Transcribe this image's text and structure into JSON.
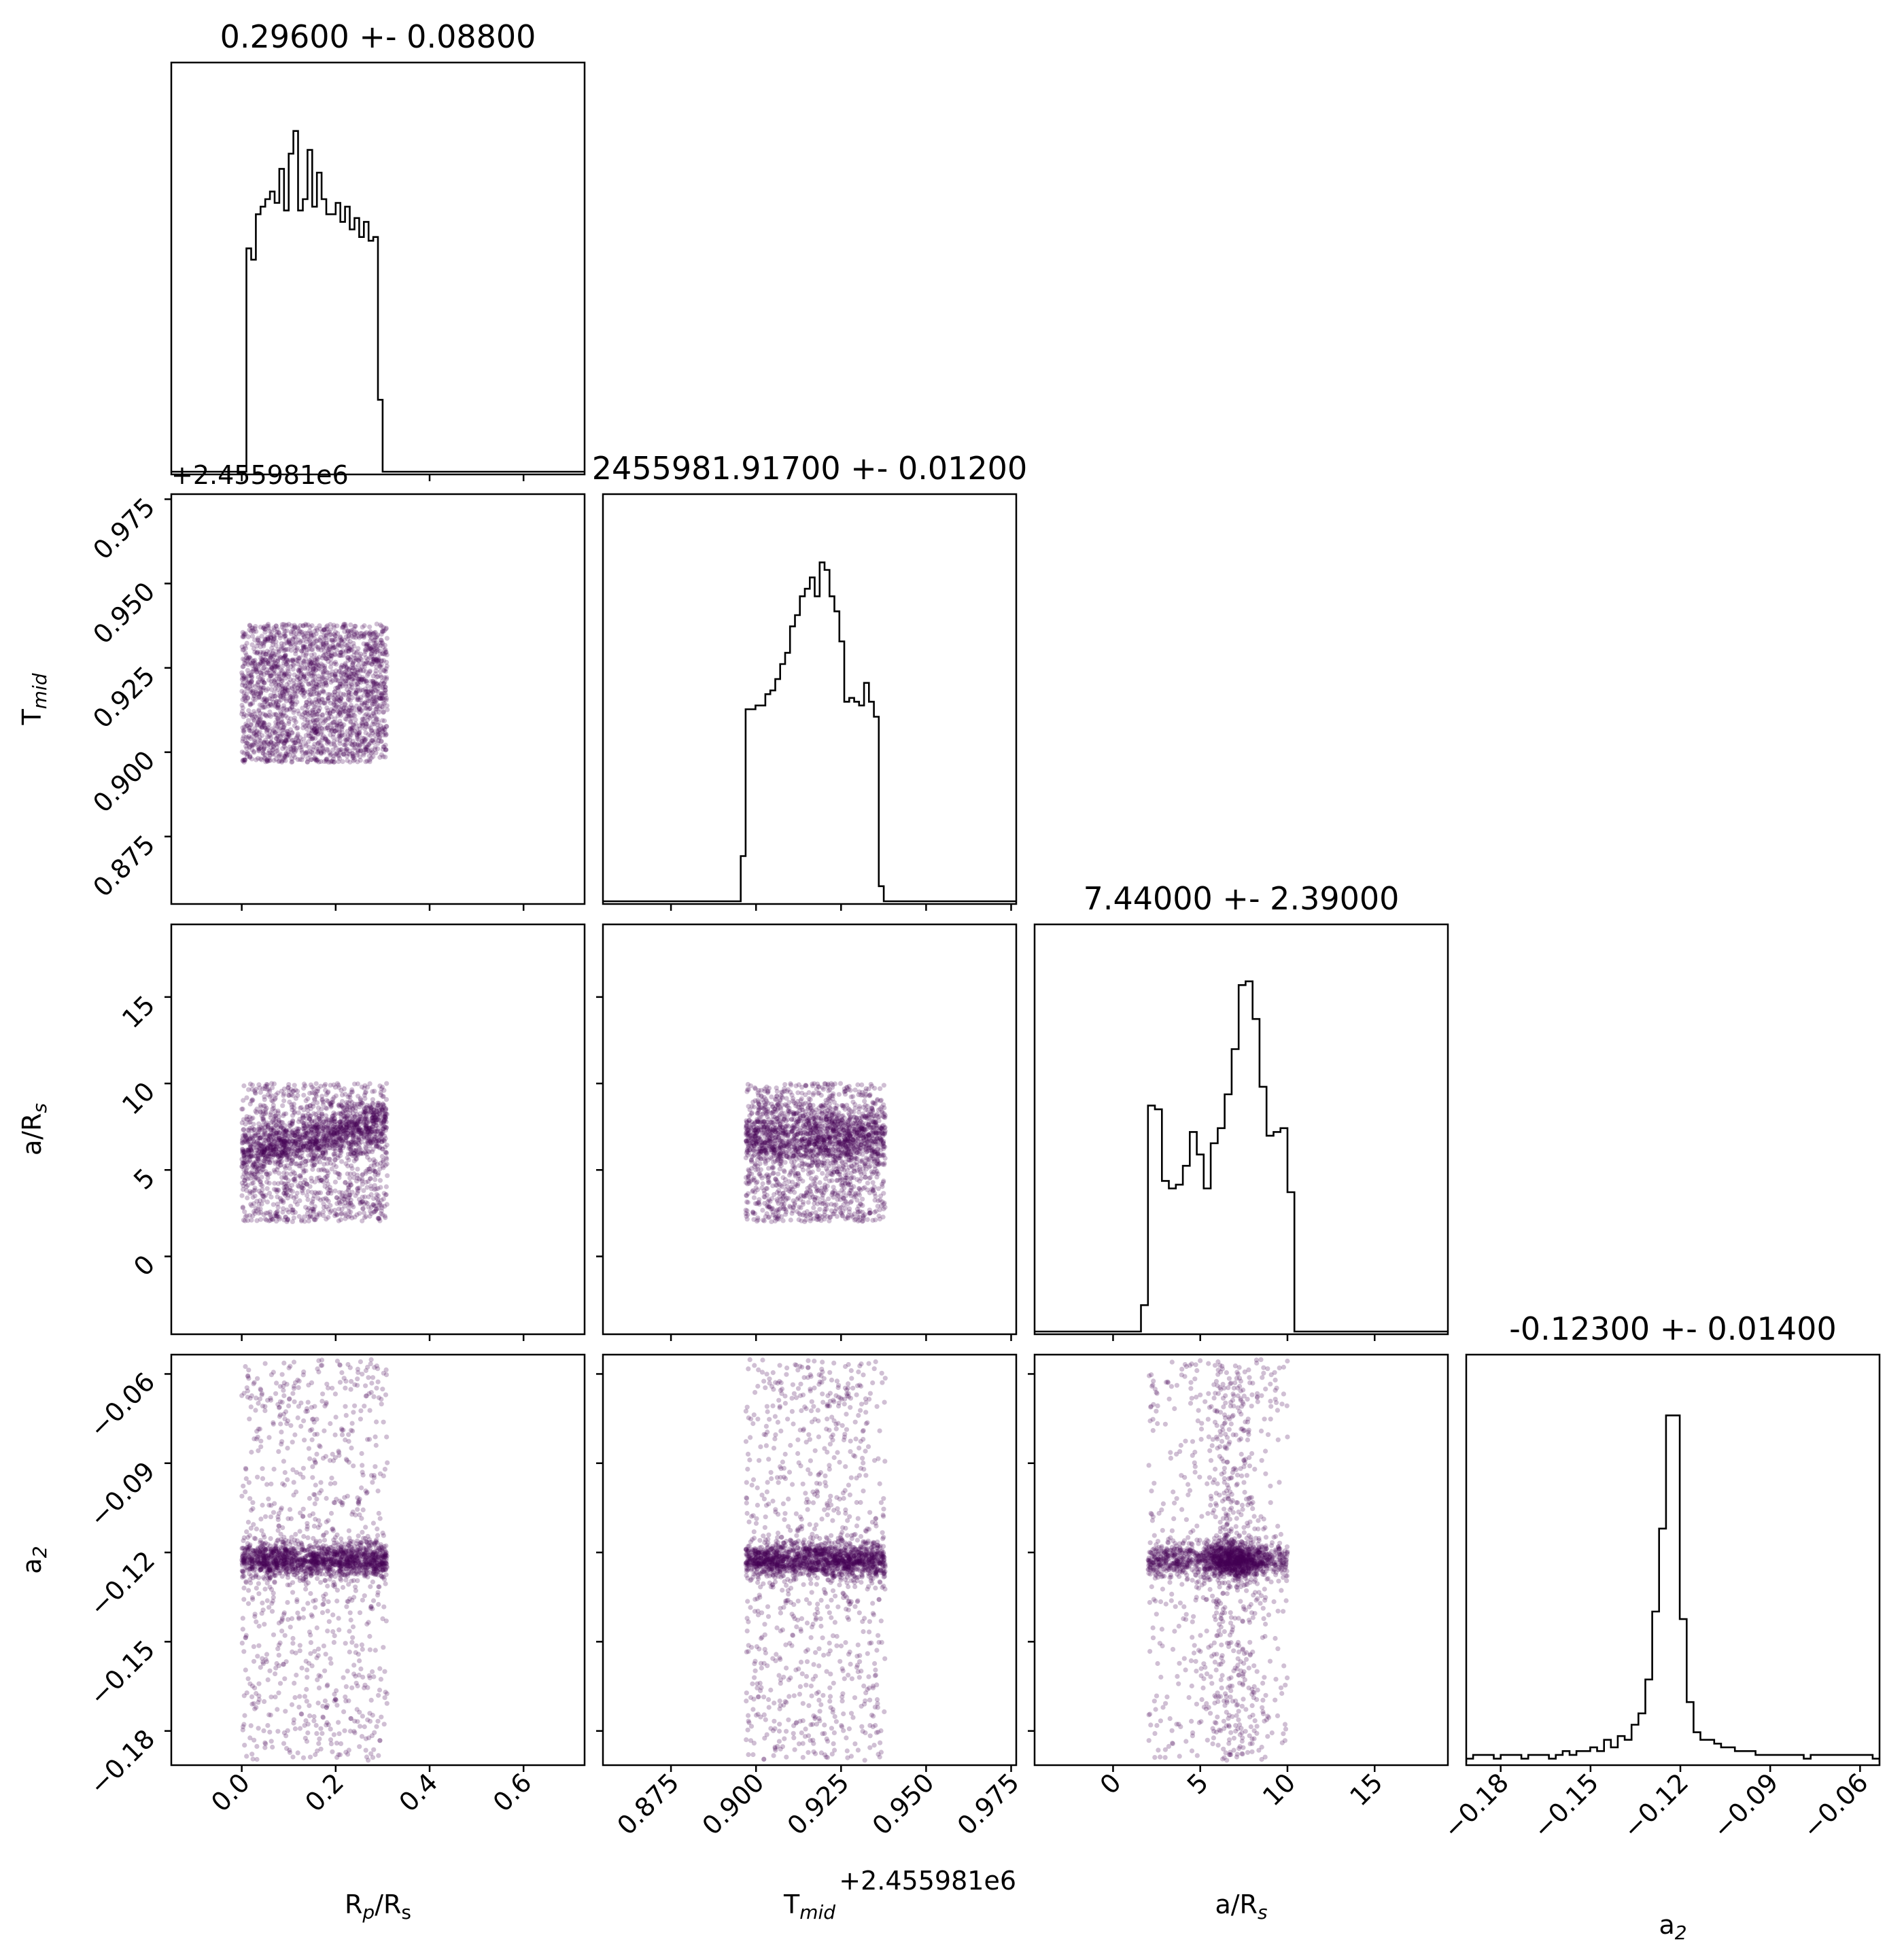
{
  "chart_data": {
    "type": "corner",
    "parameters": [
      {
        "key": "rp",
        "label": "R_p/R_s",
        "label_main": "R",
        "label_sub": "p",
        "label_rest": "/R",
        "label_sub2": "s"
      },
      {
        "key": "tmid",
        "label": "T_mid",
        "label_main": "T",
        "label_sub": "mid",
        "label_rest": "",
        "label_sub2": ""
      },
      {
        "key": "ars",
        "label": "a/R_s",
        "label_main": "a/R",
        "label_sub": "s",
        "label_rest": "",
        "label_sub2": ""
      },
      {
        "key": "a2",
        "label": "a_2",
        "label_main": "a",
        "label_sub": "2",
        "label_rest": "",
        "label_sub2": ""
      }
    ],
    "titles": [
      "0.29600 +- 0.08800",
      "2455981.91700 +- 0.01200",
      "7.44000 +- 2.39000",
      "-0.12300 +- 0.01400"
    ],
    "offset_text": "+2.455981e6",
    "ranges": {
      "rp": [
        -0.15,
        0.73
      ],
      "tmid": [
        0.855,
        0.9765
      ],
      "ars": [
        -4.5,
        19.2
      ],
      "a2": [
        -0.1915,
        -0.0535
      ]
    },
    "ticks": {
      "rp": [
        0.0,
        0.2,
        0.4,
        0.6
      ],
      "tmid": [
        0.875,
        0.9,
        0.925,
        0.95,
        0.975
      ],
      "ars": [
        0,
        5,
        10,
        15
      ],
      "a2": [
        -0.18,
        -0.15,
        -0.12,
        -0.09,
        -0.06
      ]
    },
    "tick_labels": {
      "rp": [
        "0.0",
        "0.2",
        "0.4",
        "0.6"
      ],
      "tmid": [
        "0.875",
        "0.900",
        "0.925",
        "0.950",
        "0.975"
      ],
      "ars": [
        "0",
        "5",
        "10",
        "15"
      ],
      "a2": [
        "−0.18",
        "−0.15",
        "−0.12",
        "−0.09",
        "−0.06"
      ]
    },
    "marginals": {
      "rp": {
        "bin_start": 0.0,
        "bin_width": 0.01,
        "counts": [
          0,
          0.59,
          0.56,
          0.68,
          0.7,
          0.72,
          0.74,
          0.71,
          0.8,
          0.69,
          0.84,
          0.9,
          0.69,
          0.72,
          0.85,
          0.7,
          0.79,
          0.72,
          0.68,
          0.68,
          0.71,
          0.66,
          0.7,
          0.64,
          0.67,
          0.62,
          0.66,
          0.61,
          0.62,
          0.19,
          0
        ]
      },
      "tmid": {
        "bin_start": 0.8955,
        "bin_width": 0.00145,
        "counts": [
          0.12,
          0.51,
          0.51,
          0.52,
          0.52,
          0.55,
          0.56,
          0.59,
          0.63,
          0.66,
          0.73,
          0.76,
          0.81,
          0.83,
          0.86,
          0.81,
          0.9,
          0.88,
          0.81,
          0.77,
          0.69,
          0.53,
          0.54,
          0.53,
          0.52,
          0.58,
          0.53,
          0.49,
          0.04,
          0
        ]
      },
      "ars": {
        "bin_start": 1.6,
        "bin_width": 0.4,
        "counts": [
          0.07,
          0.6,
          0.59,
          0.4,
          0.38,
          0.39,
          0.44,
          0.53,
          0.47,
          0.38,
          0.5,
          0.54,
          0.63,
          0.75,
          0.92,
          0.93,
          0.83,
          0.65,
          0.52,
          0.53,
          0.54,
          0.37,
          0
        ]
      },
      "a2": {
        "bin_start": -0.1915,
        "bin_width": 0.0023,
        "counts": [
          0.01,
          0.02,
          0.02,
          0.02,
          0.01,
          0.02,
          0.02,
          0.02,
          0.01,
          0.02,
          0.02,
          0.02,
          0.01,
          0.02,
          0.03,
          0.02,
          0.03,
          0.03,
          0.04,
          0.03,
          0.06,
          0.04,
          0.07,
          0.06,
          0.1,
          0.13,
          0.22,
          0.4,
          0.62,
          0.92,
          0.92,
          0.38,
          0.16,
          0.08,
          0.06,
          0.06,
          0.05,
          0.04,
          0.04,
          0.03,
          0.03,
          0.03,
          0.02,
          0.02,
          0.02,
          0.02,
          0.02,
          0.02,
          0.02,
          0.01,
          0.02,
          0.02,
          0.02,
          0.02,
          0.02,
          0.02,
          0.02,
          0.02,
          0.02,
          0.01
        ]
      }
    },
    "scatter_clouds": {
      "uniform_bounds": {
        "rp": [
          0.0,
          0.31
        ],
        "tmid": [
          0.897,
          0.938
        ],
        "ars": [
          2.0,
          10.0
        ],
        "a2": [
          -0.19,
          -0.055
        ]
      },
      "a2_core": {
        "center": -0.1225,
        "half_width": 0.003,
        "fraction": 0.6
      },
      "point_count": 2200,
      "color": "#440154",
      "alpha": 0.25
    },
    "grid": false
  }
}
